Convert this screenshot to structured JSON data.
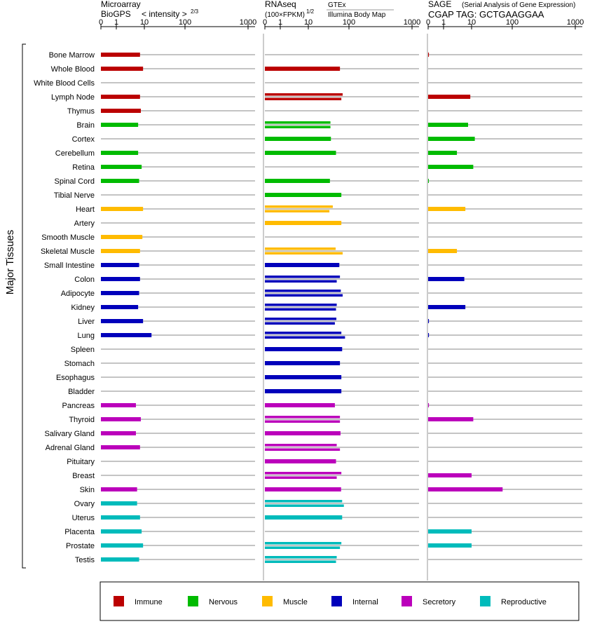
{
  "chart_data": {
    "type": "bar",
    "ylabel": "Major Tissues",
    "tick_labels": [
      "0",
      "1",
      "10",
      "100",
      "1000"
    ],
    "tissues": [
      "Bone Marrow",
      "Whole Blood",
      "White Blood Cells",
      "Lymph Node",
      "Thymus",
      "Brain",
      "Cortex",
      "Cerebellum",
      "Retina",
      "Spinal Cord",
      "Tibial Nerve",
      "Heart",
      "Artery",
      "Smooth Muscle",
      "Skeletal Muscle",
      "Small Intestine",
      "Colon",
      "Adipocyte",
      "Kidney",
      "Liver",
      "Lung",
      "Spleen",
      "Stomach",
      "Esophagus",
      "Bladder",
      "Pancreas",
      "Thyroid",
      "Salivary Gland",
      "Adrenal Gland",
      "Pituitary",
      "Breast",
      "Skin",
      "Ovary",
      "Uterus",
      "Placenta",
      "Prostate",
      "Testis"
    ],
    "groups": [
      "Immune",
      "Immune",
      "Immune",
      "Immune",
      "Immune",
      "Nervous",
      "Nervous",
      "Nervous",
      "Nervous",
      "Nervous",
      "Nervous",
      "Muscle",
      "Muscle",
      "Muscle",
      "Muscle",
      "Internal",
      "Internal",
      "Internal",
      "Internal",
      "Internal",
      "Internal",
      "Internal",
      "Internal",
      "Internal",
      "Internal",
      "Secretory",
      "Secretory",
      "Secretory",
      "Secretory",
      "Secretory",
      "Secretory",
      "Secretory",
      "Reproductive",
      "Reproductive",
      "Reproductive",
      "Reproductive",
      "Reproductive"
    ],
    "colors": {
      "Immune": "#bb0000",
      "Nervous": "#00bb00",
      "Muscle": "#ffbb00",
      "Internal": "#0000bb",
      "Secretory": "#bb00bb",
      "Reproductive": "#00bbbb"
    },
    "legend": [
      "Immune",
      "Nervous",
      "Muscle",
      "Internal",
      "Secretory",
      "Reproductive"
    ],
    "panels": [
      {
        "title": "Microarray",
        "source": "BioGPS",
        "scale_label": "< intensity >",
        "scale_exp": "2/3",
        "values": [
          [
            7
          ],
          [
            9
          ],
          [],
          [
            7
          ],
          [
            7.5
          ],
          [
            6
          ],
          [],
          [
            6
          ],
          [
            8
          ],
          [
            6.5
          ],
          [],
          [
            9
          ],
          [],
          [
            8.5
          ],
          [
            7
          ],
          [
            6.5
          ],
          [
            7
          ],
          [
            6.5
          ],
          [
            6
          ],
          [
            9
          ],
          [
            15
          ],
          [],
          [],
          [],
          [],
          [
            5
          ],
          [
            7.5
          ],
          [
            5
          ],
          [
            7
          ],
          [],
          [],
          [
            5.5
          ],
          [
            5.5
          ],
          [
            7
          ],
          [
            8
          ],
          [
            9
          ],
          [
            6.5
          ]
        ]
      },
      {
        "title": "RNAseq",
        "scale_label": "(100×FPKM)",
        "scale_exp": "1/2",
        "source_top": "GTEx",
        "source_bottom": "Illumina Body Map",
        "values": [
          [],
          [
            60
          ],
          [],
          [
            70,
            65
          ],
          [],
          [
            35,
            35
          ],
          [
            36
          ],
          [
            48
          ],
          [],
          [
            34
          ],
          [
            65
          ],
          [
            40,
            33
          ],
          [
            65
          ],
          [],
          [
            47,
            70
          ],
          [
            58
          ],
          [
            60,
            50
          ],
          [
            63,
            70
          ],
          [
            50,
            48
          ],
          [
            49,
            45
          ],
          [
            65,
            80
          ],
          [
            68
          ],
          [
            60
          ],
          [
            65
          ],
          [
            65
          ],
          [
            45
          ],
          [
            60,
            60
          ],
          [
            62
          ],
          [
            50,
            60
          ],
          [
            48
          ],
          [
            65,
            50
          ],
          [
            64
          ],
          [
            68,
            75
          ],
          [
            68
          ],
          [],
          [
            65,
            60
          ],
          [
            50,
            48
          ]
        ]
      },
      {
        "title": "SAGE",
        "subtitle": "(Serial Analysis of Gene Expression)",
        "source": "CGAP TAG: GCTGAAGGAA",
        "values": [
          [
            0.05
          ],
          [],
          [],
          [
            9
          ],
          [],
          [
            7.5
          ],
          [
            12
          ],
          [
            3
          ],
          [
            11
          ],
          [
            0.03
          ],
          [],
          [
            6
          ],
          [],
          [],
          [
            3
          ],
          [],
          [
            5.5
          ],
          [],
          [
            6
          ],
          [
            0.05
          ],
          [
            0.05
          ],
          [],
          [],
          [],
          [],
          [
            0.05
          ],
          [
            11
          ],
          [],
          [],
          [],
          [
            10
          ],
          [
            58
          ],
          [],
          [],
          [
            10
          ],
          [
            10
          ],
          []
        ]
      }
    ]
  }
}
